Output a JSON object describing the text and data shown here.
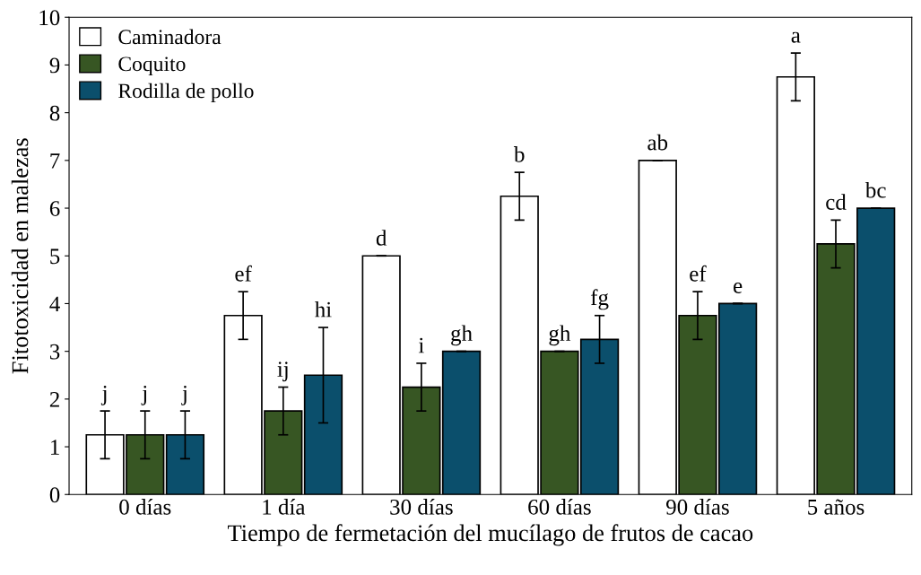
{
  "chart_data": {
    "type": "bar",
    "xlabel": "Tiempo de fermetación del mucílago de frutos de cacao",
    "ylabel": "Fitotoxicidad en malezas",
    "categories": [
      "0 días",
      "1 día",
      "30 días",
      "60 días",
      "90 días",
      "5 años"
    ],
    "series": [
      {
        "name": "Caminadora",
        "color": "#ffffff",
        "values": [
          1.25,
          3.75,
          5.0,
          6.25,
          7.0,
          8.75
        ],
        "errors": [
          0.5,
          0.5,
          0,
          0.5,
          0,
          0.5
        ],
        "value_labels": [
          "j",
          "ef",
          "d",
          "b",
          "ab",
          "a"
        ]
      },
      {
        "name": "Coquito",
        "color": "#375623",
        "values": [
          1.25,
          1.75,
          2.25,
          3.0,
          3.75,
          5.25
        ],
        "errors": [
          0.5,
          0.5,
          0.5,
          0,
          0.5,
          0.5
        ],
        "value_labels": [
          "j",
          "ij",
          "i",
          "gh",
          "ef",
          "cd"
        ]
      },
      {
        "name": "Rodilla de pollo",
        "color": "#0b4f6c",
        "values": [
          1.25,
          2.5,
          3.0,
          3.25,
          4.0,
          6.0
        ],
        "errors": [
          0.5,
          1.0,
          0,
          0.5,
          0,
          0
        ],
        "value_labels": [
          "j",
          "hi",
          "gh",
          "fg",
          "e",
          "bc"
        ]
      }
    ],
    "ylim": [
      0,
      10
    ],
    "yticks": [
      0,
      1,
      2,
      3,
      4,
      5,
      6,
      7,
      8,
      9,
      10
    ],
    "grid": false,
    "legend": "top left"
  }
}
